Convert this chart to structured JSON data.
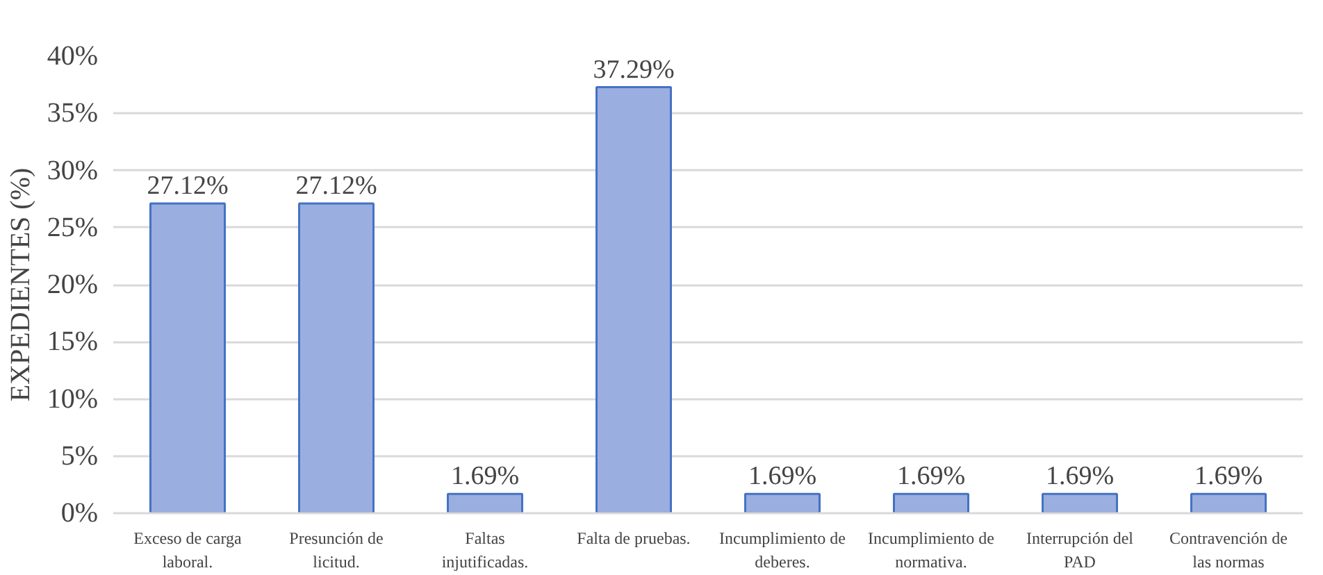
{
  "chart_data": {
    "type": "bar",
    "ylabel": "EXPEDIENTES (%)",
    "categories": [
      "Exceso de carga laboral.",
      "Presunción de licitud.",
      "Faltas injutificadas.",
      "Falta de pruebas.",
      "Incumplimiento de deberes.",
      "Incumplimiento de normativa.",
      "Interrupción del PAD",
      "Contravención de las normas"
    ],
    "values": [
      27.12,
      27.12,
      1.69,
      37.29,
      1.69,
      1.69,
      1.69,
      1.69
    ],
    "value_labels": [
      "27.12%",
      "27.12%",
      "1.69%",
      "37.29%",
      "1.69%",
      "1.69%",
      "1.69%",
      "1.69%"
    ],
    "color": "#9aaee0",
    "ylim": [
      0,
      40
    ],
    "yticks": [
      {
        "value": 0,
        "label": "0%"
      },
      {
        "value": 5,
        "label": "5%"
      },
      {
        "value": 10,
        "label": "10%"
      },
      {
        "value": 15,
        "label": "15%"
      },
      {
        "value": 20,
        "label": "20%"
      },
      {
        "value": 25,
        "label": "25%"
      },
      {
        "value": 30,
        "label": "30%"
      },
      {
        "value": 35,
        "label": "35%"
      },
      {
        "value": 40,
        "label": "40%"
      }
    ],
    "grid": "y"
  }
}
